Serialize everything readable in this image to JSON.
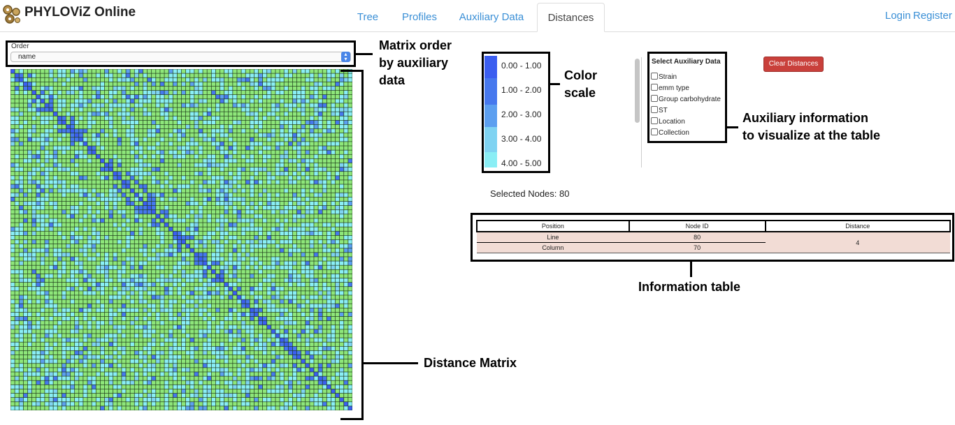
{
  "app": {
    "title": "PHYLOViZ Online"
  },
  "tabs": [
    {
      "label": "Tree",
      "active": false
    },
    {
      "label": "Profiles",
      "active": false
    },
    {
      "label": "Auxiliary Data",
      "active": false
    },
    {
      "label": "Distances",
      "active": true
    }
  ],
  "auth": {
    "login": "Login",
    "register": "Register"
  },
  "order": {
    "label": "Order",
    "value": "name"
  },
  "color_scale": [
    {
      "label": "0.00 - 1.00",
      "color": "#3b5ef0"
    },
    {
      "label": "1.00 - 2.00",
      "color": "#4678ee"
    },
    {
      "label": "2.00 - 3.00",
      "color": "#5c9ff0"
    },
    {
      "label": "3.00 - 4.00",
      "color": "#7fd3f2"
    },
    {
      "label": "4.00 - 5.00",
      "color": "#8aeef5"
    }
  ],
  "matrix": {
    "size": 80,
    "colors": {
      "d0": "#3b5ef0",
      "d1": "#4678ee",
      "d2": "#5c9ff0",
      "d3": "#7fd3f2",
      "d4": "#8aeef5",
      "far": "#8ee67a"
    }
  },
  "auxiliary": {
    "title": "Select Auxiliary Data",
    "items": [
      "Strain",
      "emm type",
      "Group carbohydrate",
      "ST",
      "Location",
      "Collection"
    ]
  },
  "clear_button": "Clear Distances",
  "selected_nodes": "Selected Nodes: 80",
  "info_table": {
    "headers": [
      "Position",
      "Node ID",
      "Distance"
    ],
    "rows": [
      {
        "position": "Line",
        "node_id": "80"
      },
      {
        "position": "Column",
        "node_id": "70"
      }
    ],
    "distance": "4"
  },
  "annotations": {
    "matrix_order": [
      "Matrix order",
      "by auxiliary",
      "data"
    ],
    "color_scale": [
      "Color",
      "scale"
    ],
    "auxiliary": [
      "Auxiliary information",
      "to visualize at the table"
    ],
    "info_table": "Information table",
    "distance_matrix": "Distance Matrix"
  }
}
